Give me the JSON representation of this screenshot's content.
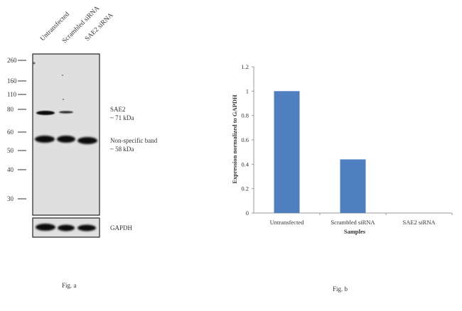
{
  "blot": {
    "lane_labels": [
      "Untransfected",
      "Scrambled siRNA",
      "SAE2 siRNA"
    ],
    "markers": [
      "260",
      "160",
      "110",
      "80",
      "60",
      "50",
      "40",
      "30"
    ],
    "annotations": {
      "sae2": "SAE2",
      "sae2_size": "~ 71 kDa",
      "nonspecific": "Non-specific band",
      "nonspecific_size": "~ 58 kDa",
      "loading": "GAPDH"
    },
    "caption": "Fig. a"
  },
  "caption_b": "Fig. b",
  "chart_data": {
    "type": "bar",
    "categories": [
      "Untransfected",
      "Scrambled siRNA",
      "SAE2 siRNA"
    ],
    "values": [
      1.0,
      0.44,
      0.0
    ],
    "xlabel": "Samples",
    "ylabel": "Expression  normalized to GAPDH",
    "ylim": [
      0,
      1.2
    ],
    "yticks": [
      "0",
      "0.2",
      "0.4",
      "0.6",
      "0.8",
      "1",
      "1.2"
    ],
    "grid": false,
    "legend": "none",
    "colors": {
      "bar": "#4f7fbe",
      "axis": "#9a9a9a"
    }
  }
}
